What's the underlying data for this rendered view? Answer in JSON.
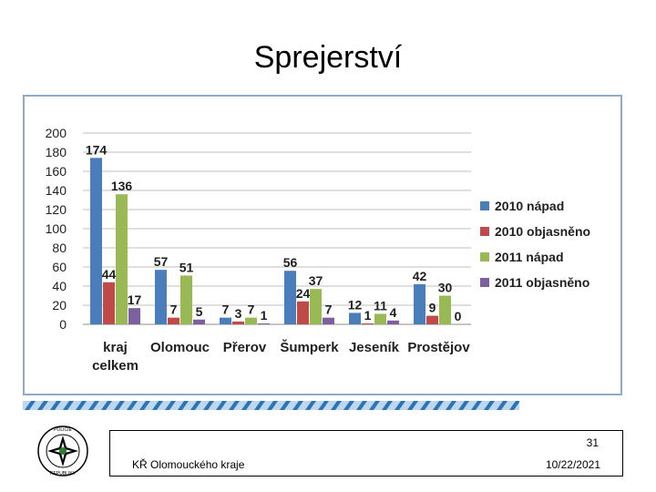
{
  "slide": {
    "title": "Sprejerství",
    "page_number": "31",
    "organization": "KŘ Olomouckého kraje",
    "date": "10/22/2021",
    "logo_text": "POLICIE ČESKÉ REPUBLIKY"
  },
  "chart_data": {
    "type": "bar",
    "title": "",
    "xlabel": "",
    "ylabel": "",
    "ylim": [
      0,
      200
    ],
    "yticks": [
      0,
      20,
      40,
      60,
      80,
      100,
      120,
      140,
      160,
      180,
      200
    ],
    "grid": true,
    "legend_position": "right",
    "categories": [
      [
        "kraj",
        "celkem"
      ],
      [
        "Olomouc"
      ],
      [
        "Přerov"
      ],
      [
        "Šumperk"
      ],
      [
        "Jeseník"
      ],
      [
        "Prostějov"
      ]
    ],
    "series": [
      {
        "name": "2010 nápad",
        "color": "#4a7ebb",
        "values": [
          174,
          57,
          7,
          56,
          12,
          42
        ]
      },
      {
        "name": "2010 objasněno",
        "color": "#be4b48",
        "values": [
          44,
          7,
          3,
          24,
          1,
          9
        ]
      },
      {
        "name": "2011 nápad",
        "color": "#98b954",
        "values": [
          136,
          51,
          7,
          37,
          11,
          30
        ]
      },
      {
        "name": "2011 objasněno",
        "color": "#7d60a0",
        "values": [
          17,
          5,
          1,
          7,
          4,
          0
        ]
      }
    ]
  }
}
